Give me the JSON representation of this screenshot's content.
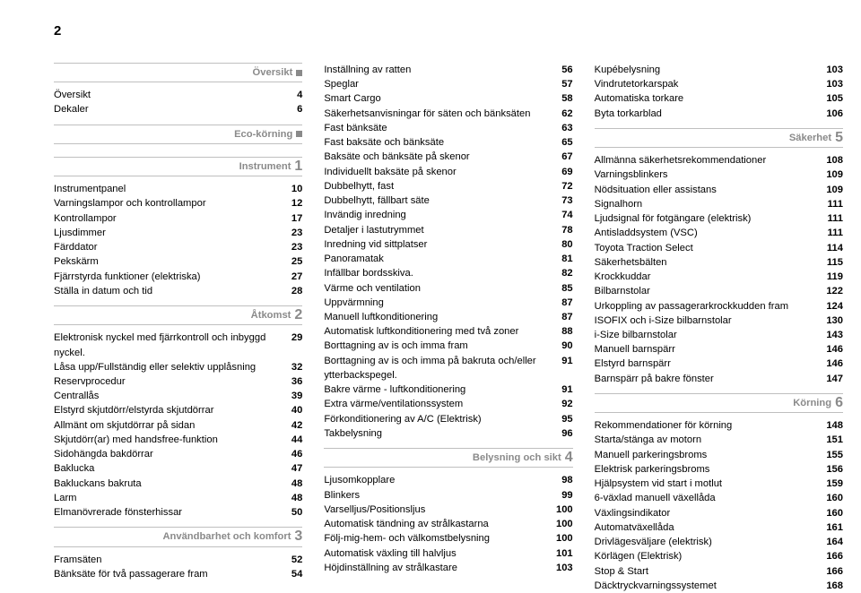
{
  "page_number": "2",
  "columns": [
    {
      "sections": [
        {
          "title": "Översikt",
          "marker": "square",
          "entries": [
            {
              "label": "Översikt",
              "page": "4"
            },
            {
              "label": "Dekaler",
              "page": "6"
            }
          ]
        },
        {
          "title": "Eco-körning",
          "marker": "square",
          "entries": []
        },
        {
          "title": "Instrument",
          "marker": "1",
          "entries": [
            {
              "label": "Instrumentpanel",
              "page": "10"
            },
            {
              "label": "Varningslampor och kontrollampor",
              "page": "12"
            },
            {
              "label": "Kontrollampor",
              "page": "17"
            },
            {
              "label": "Ljusdimmer",
              "page": "23"
            },
            {
              "label": "Färddator",
              "page": "23"
            },
            {
              "label": "Pekskärm",
              "page": "25"
            },
            {
              "label": "Fjärrstyrda funktioner (elektriska)",
              "page": "27"
            },
            {
              "label": "Ställa in datum och tid",
              "page": "28"
            }
          ]
        },
        {
          "title": "Åtkomst",
          "marker": "2",
          "entries": [
            {
              "label": "Elektronisk nyckel med fjärrkontroll och inbyggd nyckel.",
              "page": "29"
            },
            {
              "label": "Låsa upp/Fullständig eller selektiv upplåsning",
              "page": "32"
            },
            {
              "label": "Reservprocedur",
              "page": "36"
            },
            {
              "label": "Centrallås",
              "page": "39"
            },
            {
              "label": "Elstyrd skjutdörr/elstyrda skjutdörrar",
              "page": "40"
            },
            {
              "label": "Allmänt om skjutdörrar på sidan",
              "page": "42"
            },
            {
              "label": "Skjutdörr(ar) med handsfree-funktion",
              "page": "44"
            },
            {
              "label": "Sidohängda bakdörrar",
              "page": "46"
            },
            {
              "label": "Baklucka",
              "page": "47"
            },
            {
              "label": "Bakluckans bakruta",
              "page": "48"
            },
            {
              "label": "Larm",
              "page": "48"
            },
            {
              "label": "Elmanövrerade fönsterhissar",
              "page": "50"
            }
          ]
        },
        {
          "title": "Användbarhet och komfort",
          "marker": "3",
          "entries": [
            {
              "label": "Framsäten",
              "page": "52"
            },
            {
              "label": "Bänksäte för två passagerare fram",
              "page": "54"
            }
          ]
        }
      ]
    },
    {
      "sections": [
        {
          "title": null,
          "marker": null,
          "entries": [
            {
              "label": "Inställning av ratten",
              "page": "56"
            },
            {
              "label": "Speglar",
              "page": "57"
            },
            {
              "label": "Smart Cargo",
              "page": "58"
            },
            {
              "label": "Säkerhetsanvisningar för säten och bänksäten",
              "page": "62"
            },
            {
              "label": "Fast bänksäte",
              "page": "63"
            },
            {
              "label": "Fast baksäte och bänksäte",
              "page": "65"
            },
            {
              "label": "Baksäte och bänksäte på skenor",
              "page": "67"
            },
            {
              "label": "Individuellt baksäte på skenor",
              "page": "69"
            },
            {
              "label": "Dubbelhytt, fast",
              "page": "72"
            },
            {
              "label": "Dubbelhytt, fällbart säte",
              "page": "73"
            },
            {
              "label": "Invändig inredning",
              "page": "74"
            },
            {
              "label": "Detaljer i lastutrymmet",
              "page": "78"
            },
            {
              "label": "Inredning vid sittplatser",
              "page": "80"
            },
            {
              "label": "Panoramatak",
              "page": "81"
            },
            {
              "label": "Infällbar bordsskiva.",
              "page": "82"
            },
            {
              "label": "Värme och ventilation",
              "page": "85"
            },
            {
              "label": "Uppvärmning",
              "page": "87"
            },
            {
              "label": "Manuell luftkonditionering",
              "page": "87"
            },
            {
              "label": "Automatisk luftkonditionering med två zoner",
              "page": "88"
            },
            {
              "label": "Borttagning av is och imma fram",
              "page": "90"
            },
            {
              "label": "Borttagning av is och imma på bakruta och/eller ytterbackspegel.",
              "page": "91"
            },
            {
              "label": "Bakre värme - luftkonditionering",
              "page": "91"
            },
            {
              "label": "Extra värme/ventilationssystem",
              "page": "92"
            },
            {
              "label": "Förkonditionering av A/C (Elektrisk)",
              "page": "95"
            },
            {
              "label": "Takbelysning",
              "page": "96"
            }
          ]
        },
        {
          "title": "Belysning och sikt",
          "marker": "4",
          "entries": [
            {
              "label": "Ljusomkopplare",
              "page": "98"
            },
            {
              "label": "Blinkers",
              "page": "99"
            },
            {
              "label": "Varselljus/Positionsljus",
              "page": "100"
            },
            {
              "label": "Automatisk tändning av strålkastarna",
              "page": "100"
            },
            {
              "label": "Följ-mig-hem- och välkomstbelysning",
              "page": "100"
            },
            {
              "label": "Automatisk växling till halvljus",
              "page": "101"
            },
            {
              "label": "Höjdinställning av strålkastare",
              "page": "103"
            }
          ]
        }
      ]
    },
    {
      "sections": [
        {
          "title": null,
          "marker": null,
          "entries": [
            {
              "label": "Kupébelysning",
              "page": "103"
            },
            {
              "label": "Vindrutetorkarspak",
              "page": "103"
            },
            {
              "label": "Automatiska torkare",
              "page": "105"
            },
            {
              "label": "Byta torkarblad",
              "page": "106"
            }
          ]
        },
        {
          "title": "Säkerhet",
          "marker": "5",
          "entries": [
            {
              "label": "Allmänna säkerhetsrekommendationer",
              "page": "108"
            },
            {
              "label": "Varningsblinkers",
              "page": "109"
            },
            {
              "label": "Nödsituation eller assistans",
              "page": "109"
            },
            {
              "label": "Signalhorn",
              "page": "111"
            },
            {
              "label": "Ljudsignal för fotgängare (elektrisk)",
              "page": "111"
            },
            {
              "label": "Antisladdsystem (VSC)",
              "page": "111"
            },
            {
              "label": "Toyota Traction Select",
              "page": "114"
            },
            {
              "label": "Säkerhetsbälten",
              "page": "115"
            },
            {
              "label": "Krockkuddar",
              "page": "119"
            },
            {
              "label": "Bilbarnstolar",
              "page": "122"
            },
            {
              "label": "Urkoppling av passagerarkrockkudden fram",
              "page": "124"
            },
            {
              "label": "ISOFIX och i-Size bilbarnstolar",
              "page": "130"
            },
            {
              "label": "i-Size bilbarnstolar",
              "page": "143"
            },
            {
              "label": "Manuell barnspärr",
              "page": "146"
            },
            {
              "label": "Elstyrd barnspärr",
              "page": "146"
            },
            {
              "label": "Barnspärr på bakre fönster",
              "page": "147"
            }
          ]
        },
        {
          "title": "Körning",
          "marker": "6",
          "entries": [
            {
              "label": "Rekommendationer för körning",
              "page": "148"
            },
            {
              "label": "Starta/stänga av motorn",
              "page": "151"
            },
            {
              "label": "Manuell parkeringsbroms",
              "page": "155"
            },
            {
              "label": "Elektrisk parkeringsbroms",
              "page": "156"
            },
            {
              "label": "Hjälpsystem vid start i motlut",
              "page": "159"
            },
            {
              "label": "6-växlad manuell växellåda",
              "page": "160"
            },
            {
              "label": "Växlingsindikator",
              "page": "160"
            },
            {
              "label": "Automatväxellåda",
              "page": "161"
            },
            {
              "label": "Drivlägesväljare (elektrisk)",
              "page": "164"
            },
            {
              "label": "Körlägen (Elektrisk)",
              "page": "166"
            },
            {
              "label": "Stop & Start",
              "page": "166"
            },
            {
              "label": "Däcktryckvarningssystemet",
              "page": "168"
            }
          ]
        }
      ]
    }
  ]
}
